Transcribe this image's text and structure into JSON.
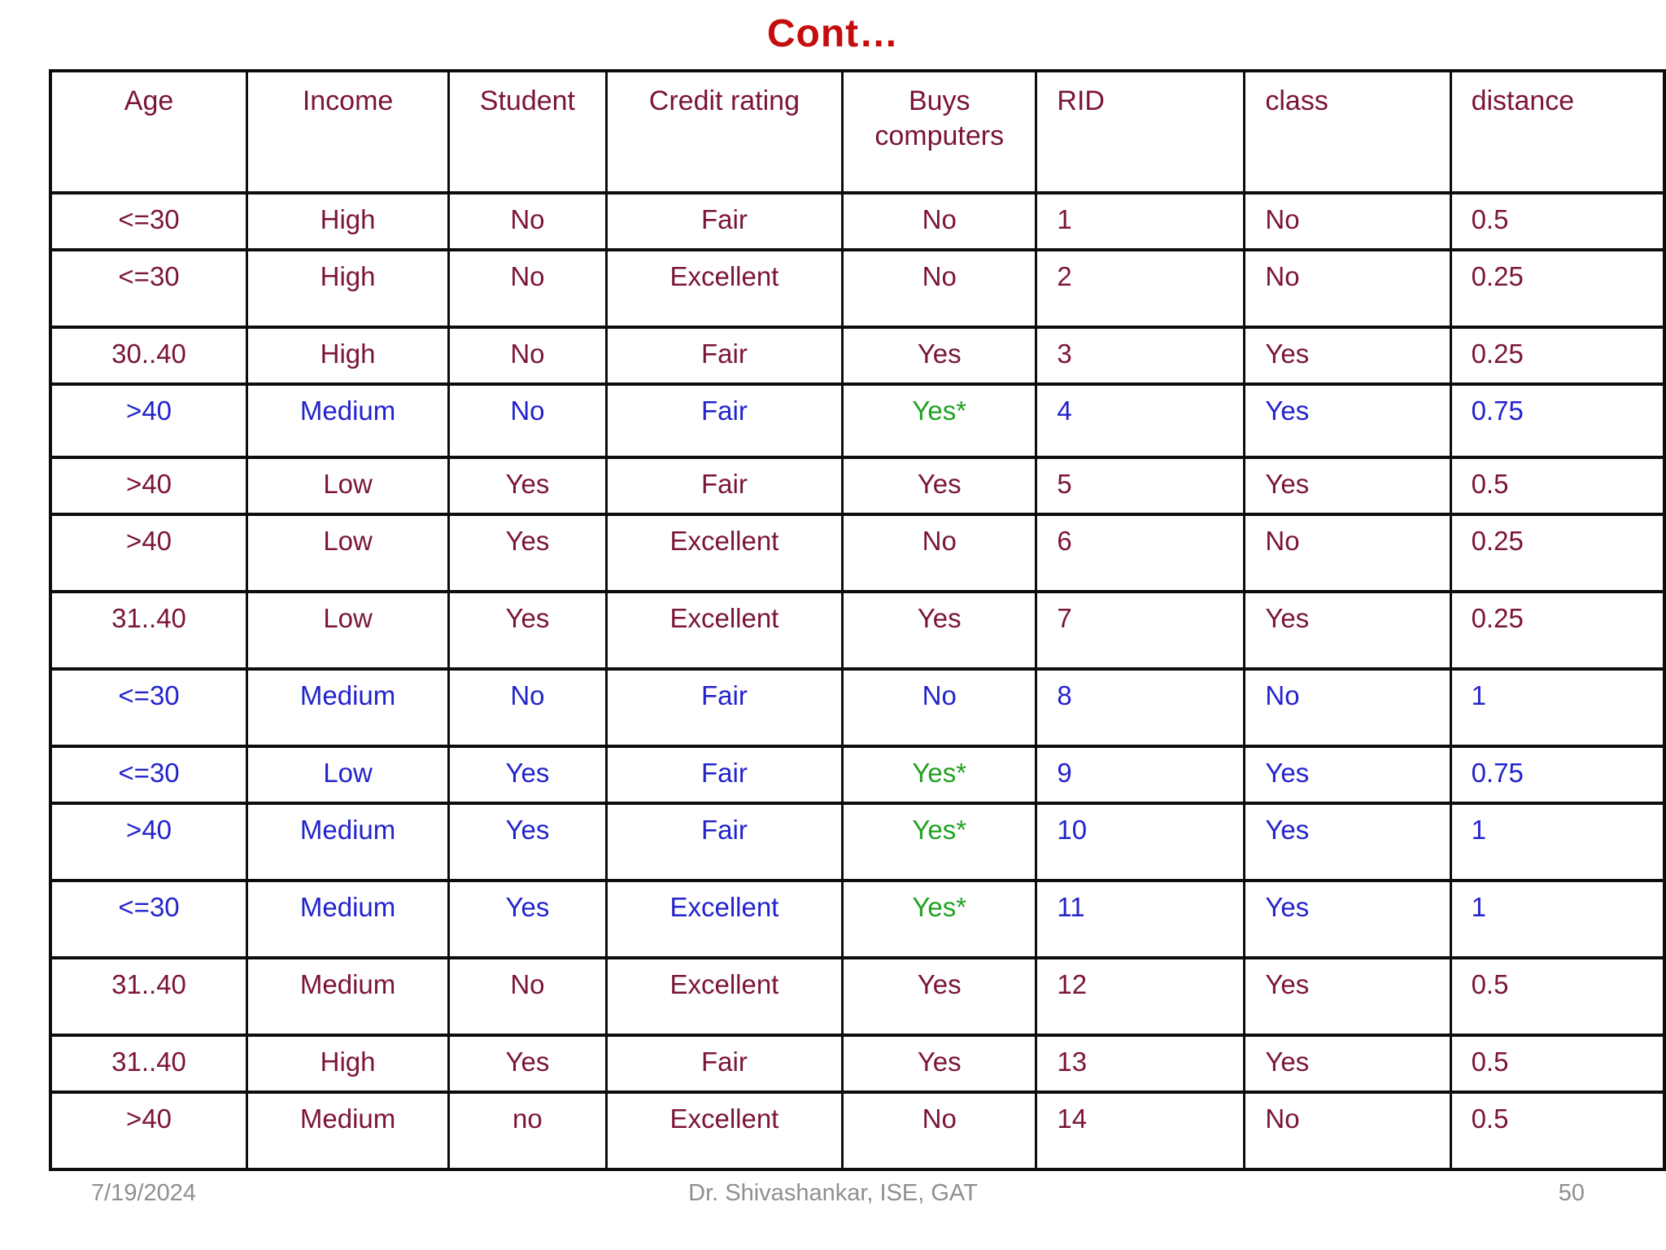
{
  "title": "Cont…",
  "colors": {
    "title_red": "#c50d0d",
    "maroon": "#7b1535",
    "blue": "#2323cc",
    "green": "#21a121",
    "footer_gray": "#8f8f8f",
    "grid_black": "#0d0d0d"
  },
  "table": {
    "headers": [
      "Age",
      "Income",
      "Student",
      "Credit rating",
      "Buys computers",
      "RID",
      "class",
      "distance"
    ],
    "rows": [
      {
        "values": [
          "<=30",
          "High",
          "No",
          "Fair",
          "No",
          "1",
          "No",
          "0.5"
        ],
        "color": "maroon",
        "overrides": {}
      },
      {
        "values": [
          "<=30",
          "High",
          "No",
          "Excellent",
          "No",
          "2",
          "No",
          "0.25"
        ],
        "color": "maroon",
        "overrides": {}
      },
      {
        "values": [
          "30..40",
          "High",
          "No",
          "Fair",
          "Yes",
          "3",
          "Yes",
          "0.25"
        ],
        "color": "maroon",
        "overrides": {}
      },
      {
        "values": [
          ">40",
          "Medium",
          "No",
          "Fair",
          "Yes*",
          "4",
          "Yes",
          "0.75"
        ],
        "color": "blue",
        "overrides": {
          "4": "green"
        }
      },
      {
        "values": [
          ">40",
          "Low",
          "Yes",
          "Fair",
          "Yes",
          "5",
          "Yes",
          "0.5"
        ],
        "color": "maroon",
        "overrides": {}
      },
      {
        "values": [
          ">40",
          "Low",
          "Yes",
          "Excellent",
          "No",
          "6",
          "No",
          "0.25"
        ],
        "color": "maroon",
        "overrides": {}
      },
      {
        "values": [
          "31..40",
          "Low",
          "Yes",
          "Excellent",
          "Yes",
          "7",
          "Yes",
          "0.25"
        ],
        "color": "maroon",
        "overrides": {}
      },
      {
        "values": [
          "<=30",
          "Medium",
          "No",
          "Fair",
          "No",
          "8",
          "No",
          "1"
        ],
        "color": "blue",
        "overrides": {}
      },
      {
        "values": [
          "<=30",
          "Low",
          "Yes",
          "Fair",
          "Yes*",
          "9",
          "Yes",
          "0.75"
        ],
        "color": "blue",
        "overrides": {
          "4": "green"
        }
      },
      {
        "values": [
          ">40",
          "Medium",
          "Yes",
          "Fair",
          "Yes*",
          "10",
          "Yes",
          "1"
        ],
        "color": "blue",
        "overrides": {
          "4": "green"
        }
      },
      {
        "values": [
          "<=30",
          "Medium",
          "Yes",
          "Excellent",
          "Yes*",
          "11",
          "Yes",
          "1"
        ],
        "color": "blue",
        "overrides": {
          "4": "green"
        }
      },
      {
        "values": [
          "31..40",
          "Medium",
          "No",
          "Excellent",
          "Yes",
          "12",
          "Yes",
          "0.5"
        ],
        "color": "maroon",
        "overrides": {}
      },
      {
        "values": [
          "31..40",
          "High",
          "Yes",
          "Fair",
          "Yes",
          "13",
          "Yes",
          "0.5"
        ],
        "color": "maroon",
        "overrides": {}
      },
      {
        "values": [
          ">40",
          "Medium",
          "no",
          "Excellent",
          "No",
          "14",
          "No",
          "0.5"
        ],
        "color": "maroon",
        "overrides": {}
      }
    ]
  },
  "footer": {
    "date": "7/19/2024",
    "center": "Dr. Shivashankar, ISE, GAT",
    "page": "50"
  }
}
